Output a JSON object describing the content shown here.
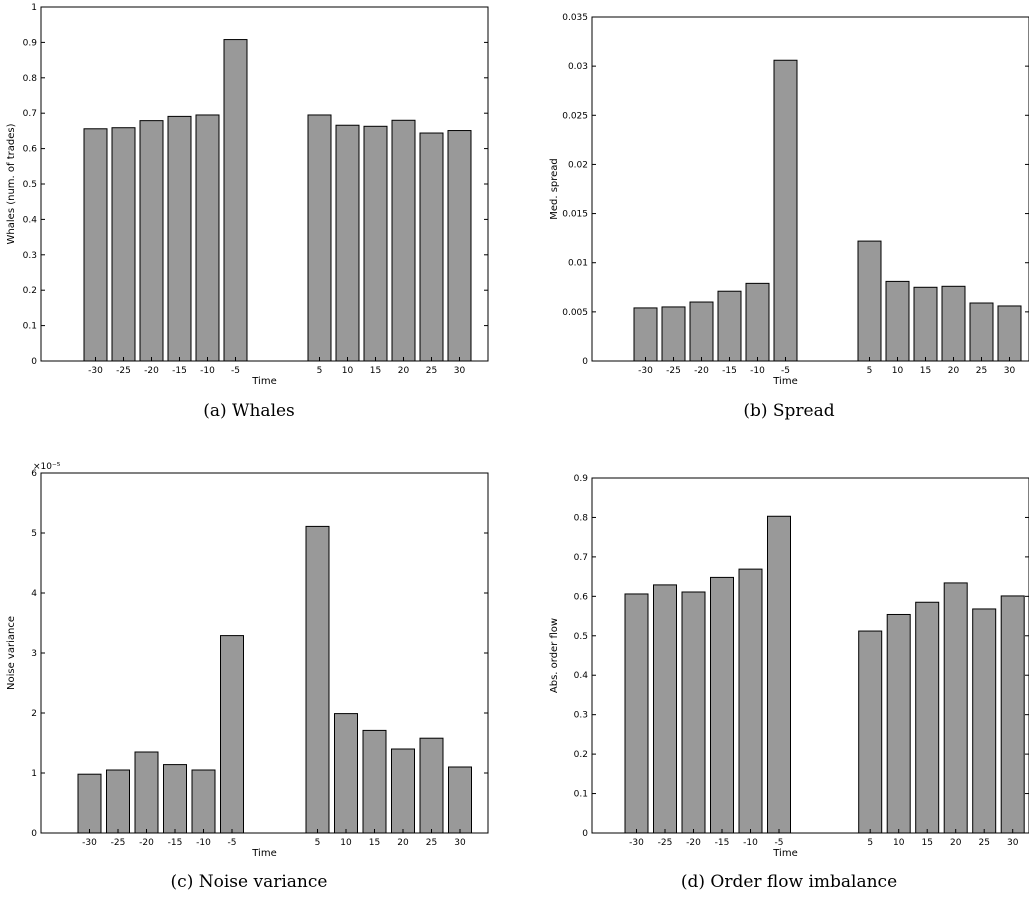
{
  "chart_data": [
    {
      "type": "bar",
      "caption": "(a) Whales",
      "categories": [
        "-30",
        "-25",
        "-20",
        "-15",
        "-10",
        "-5",
        "5",
        "10",
        "15",
        "20",
        "25",
        "30"
      ],
      "values": [
        0.656,
        0.659,
        0.679,
        0.691,
        0.695,
        0.908,
        0.695,
        0.666,
        0.663,
        0.68,
        0.644,
        0.651
      ],
      "xlabel": "Time",
      "ylabel": "Whales (num. of trades)",
      "ylim": [
        0,
        1
      ],
      "yticks": [
        "0",
        "0.1",
        "0.2",
        "0.3",
        "0.4",
        "0.5",
        "0.6",
        "0.7",
        "0.8",
        "0.9",
        "1"
      ],
      "grid": false
    },
    {
      "type": "bar",
      "caption": "(b) Spread",
      "categories": [
        "-30",
        "-25",
        "-20",
        "-15",
        "-10",
        "-5",
        "5",
        "10",
        "15",
        "20",
        "25",
        "30"
      ],
      "values": [
        0.0054,
        0.0055,
        0.006,
        0.0071,
        0.0079,
        0.0306,
        0.0122,
        0.0081,
        0.0075,
        0.0076,
        0.0059,
        0.0056
      ],
      "xlabel": "Time",
      "ylabel": "Med. spread",
      "ylim": [
        0,
        0.035
      ],
      "yticks": [
        "0",
        "0.005",
        "0.01",
        "0.015",
        "0.02",
        "0.025",
        "0.03",
        "0.035"
      ],
      "grid": false
    },
    {
      "type": "bar",
      "caption": "(c) Noise variance",
      "categories": [
        "-30",
        "-25",
        "-20",
        "-15",
        "-10",
        "-5",
        "5",
        "10",
        "15",
        "20",
        "25",
        "30"
      ],
      "values": [
        0.98,
        1.05,
        1.35,
        1.14,
        1.05,
        3.29,
        5.11,
        1.99,
        1.71,
        1.4,
        1.58,
        1.1
      ],
      "xlabel": "Time",
      "ylabel": "Noise variance",
      "yscale_label": "×10⁻⁵",
      "ylim": [
        0,
        6
      ],
      "yticks": [
        "0",
        "1",
        "2",
        "3",
        "4",
        "5",
        "6"
      ],
      "grid": false
    },
    {
      "type": "bar",
      "caption": "(d) Order flow imbalance",
      "categories": [
        "-30",
        "-25",
        "-20",
        "-15",
        "-10",
        "-5",
        "5",
        "10",
        "15",
        "20",
        "25",
        "30"
      ],
      "values": [
        0.606,
        0.629,
        0.611,
        0.648,
        0.669,
        0.803,
        0.512,
        0.554,
        0.585,
        0.634,
        0.568,
        0.601
      ],
      "xlabel": "Time",
      "ylabel": "Abs. order flow",
      "ylim": [
        0,
        0.9
      ],
      "yticks": [
        "0",
        "0.1",
        "0.2",
        "0.3",
        "0.4",
        "0.5",
        "0.6",
        "0.7",
        "0.8",
        "0.9"
      ],
      "grid": false
    }
  ],
  "colors": {
    "bar_fill": "#999999",
    "bar_stroke": "#000000"
  }
}
